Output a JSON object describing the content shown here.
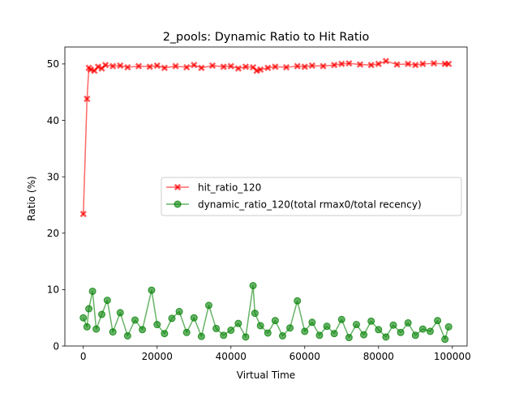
{
  "chart_data": {
    "type": "line",
    "title": "2_pools: Dynamic Ratio to Hit Ratio",
    "xlabel": "Virtual Time",
    "ylabel": "Ratio (%)",
    "xlim": [
      -5000,
      104000
    ],
    "ylim": [
      0,
      53
    ],
    "xticks": [
      0,
      20000,
      40000,
      60000,
      80000,
      100000
    ],
    "yticks": [
      0,
      10,
      20,
      30,
      40,
      50
    ],
    "legend_position": "center-right",
    "grid": false,
    "series": [
      {
        "name": "hit_ratio_120",
        "color": "#ff0000",
        "marker": "x",
        "x": [
          0,
          1000,
          1500,
          2000,
          3000,
          4000,
          5000,
          6000,
          8000,
          10000,
          12000,
          15000,
          18000,
          20000,
          22000,
          25000,
          28000,
          30000,
          32000,
          35000,
          38000,
          40000,
          42000,
          44000,
          46000,
          47000,
          48000,
          50000,
          52000,
          55000,
          58000,
          60000,
          62000,
          65000,
          68000,
          70000,
          72000,
          75000,
          78000,
          80000,
          82000,
          85000,
          88000,
          90000,
          92000,
          95000,
          98000,
          99000
        ],
        "values": [
          23.4,
          43.8,
          49.3,
          49.0,
          48.8,
          49.5,
          49.2,
          49.8,
          49.6,
          49.7,
          49.4,
          49.6,
          49.5,
          49.7,
          49.3,
          49.6,
          49.4,
          49.8,
          49.3,
          49.7,
          49.5,
          49.6,
          49.2,
          49.5,
          49.4,
          48.8,
          49.0,
          49.3,
          49.5,
          49.4,
          49.6,
          49.5,
          49.7,
          49.6,
          49.8,
          50.0,
          50.1,
          49.9,
          49.8,
          50.0,
          50.5,
          49.9,
          50.0,
          49.8,
          50.0,
          50.1,
          50.0,
          50.0
        ]
      },
      {
        "name": "dynamic_ratio_120(total rmax0/total recency)",
        "color": "#008000",
        "marker": "o",
        "x": [
          0,
          1000,
          1500,
          2500,
          3500,
          5000,
          6500,
          8000,
          10000,
          12000,
          14000,
          16000,
          18500,
          20000,
          22000,
          24000,
          26000,
          28000,
          30000,
          32000,
          34000,
          36000,
          38000,
          40000,
          42000,
          44000,
          46000,
          46500,
          48000,
          50000,
          52000,
          54000,
          56000,
          58000,
          60000,
          62000,
          64000,
          66000,
          68000,
          70000,
          72000,
          74000,
          76000,
          78000,
          80000,
          82000,
          84000,
          86000,
          88000,
          90000,
          92000,
          94000,
          96000,
          98000,
          99000
        ],
        "values": [
          5.0,
          3.4,
          6.6,
          9.7,
          3.0,
          5.6,
          8.1,
          2.5,
          5.9,
          1.8,
          4.6,
          2.9,
          9.9,
          3.8,
          2.2,
          4.9,
          6.1,
          2.4,
          5.0,
          1.7,
          7.2,
          3.1,
          1.9,
          2.8,
          4.0,
          1.6,
          10.7,
          5.8,
          3.6,
          2.3,
          4.5,
          1.8,
          3.2,
          8.0,
          2.6,
          4.2,
          1.9,
          3.5,
          2.2,
          4.7,
          1.5,
          3.8,
          2.0,
          4.4,
          2.9,
          1.6,
          3.7,
          2.4,
          4.1,
          1.9,
          3.0,
          2.6,
          4.5,
          1.2,
          3.4
        ]
      }
    ]
  }
}
